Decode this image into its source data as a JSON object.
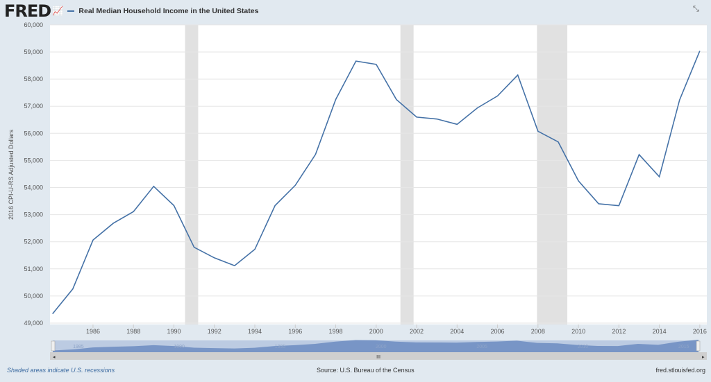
{
  "header": {
    "logo": "FRED",
    "expand_icon": "collapse-arrows-icon"
  },
  "footer": {
    "note": "Shaded areas indicate U.S. recessions",
    "source": "Source: U.S. Bureau of the Census",
    "site": "fred.stlouisfed.org"
  },
  "navigator": {
    "labels": [
      "1985",
      "1990",
      "1995",
      "2000",
      "2005",
      "2010",
      "2015"
    ],
    "scroll_grip": "III"
  },
  "colors": {
    "line": "#4572a7",
    "recession": "#e1e1e1",
    "navfill": "#6f8fc0"
  },
  "chart_data": {
    "type": "line",
    "title": "Real Median Household Income in the United States",
    "xlabel": "",
    "ylabel": "2016 CPI-U-RS Adjusted Dollars",
    "ylim": [
      49000,
      60000
    ],
    "xlim": [
      1984,
      2016
    ],
    "yticks": [
      "49,000",
      "50,000",
      "51,000",
      "52,000",
      "53,000",
      "54,000",
      "55,000",
      "56,000",
      "57,000",
      "58,000",
      "59,000",
      "60,000"
    ],
    "xticks": [
      "1986",
      "1988",
      "1990",
      "1992",
      "1994",
      "1996",
      "1998",
      "2000",
      "2002",
      "2004",
      "2006",
      "2008",
      "2010",
      "2012",
      "2014",
      "2016"
    ],
    "x": [
      1984,
      1985,
      1986,
      1987,
      1988,
      1989,
      1990,
      1991,
      1992,
      1993,
      1994,
      1995,
      1996,
      1997,
      1998,
      1999,
      2000,
      2001,
      2002,
      2003,
      2004,
      2005,
      2006,
      2007,
      2008,
      2009,
      2010,
      2011,
      2012,
      2013,
      2014,
      2015,
      2016
    ],
    "series": [
      {
        "name": "Real Median Household Income in the United States",
        "values": [
          49343,
          50258,
          52062,
          52681,
          53112,
          54044,
          53335,
          51796,
          51406,
          51118,
          51720,
          53335,
          54083,
          55221,
          57249,
          58665,
          58544,
          57246,
          56599,
          56528,
          56332,
          56935,
          57379,
          58149,
          56076,
          55683,
          54245,
          53401,
          53331,
          55214,
          54398,
          57230,
          59039
        ]
      }
    ],
    "recessions": [
      [
        1990.55,
        1991.2
      ],
      [
        2001.2,
        2001.85
      ],
      [
        2007.95,
        2009.45
      ]
    ],
    "grid": true,
    "legend": "top-left"
  }
}
